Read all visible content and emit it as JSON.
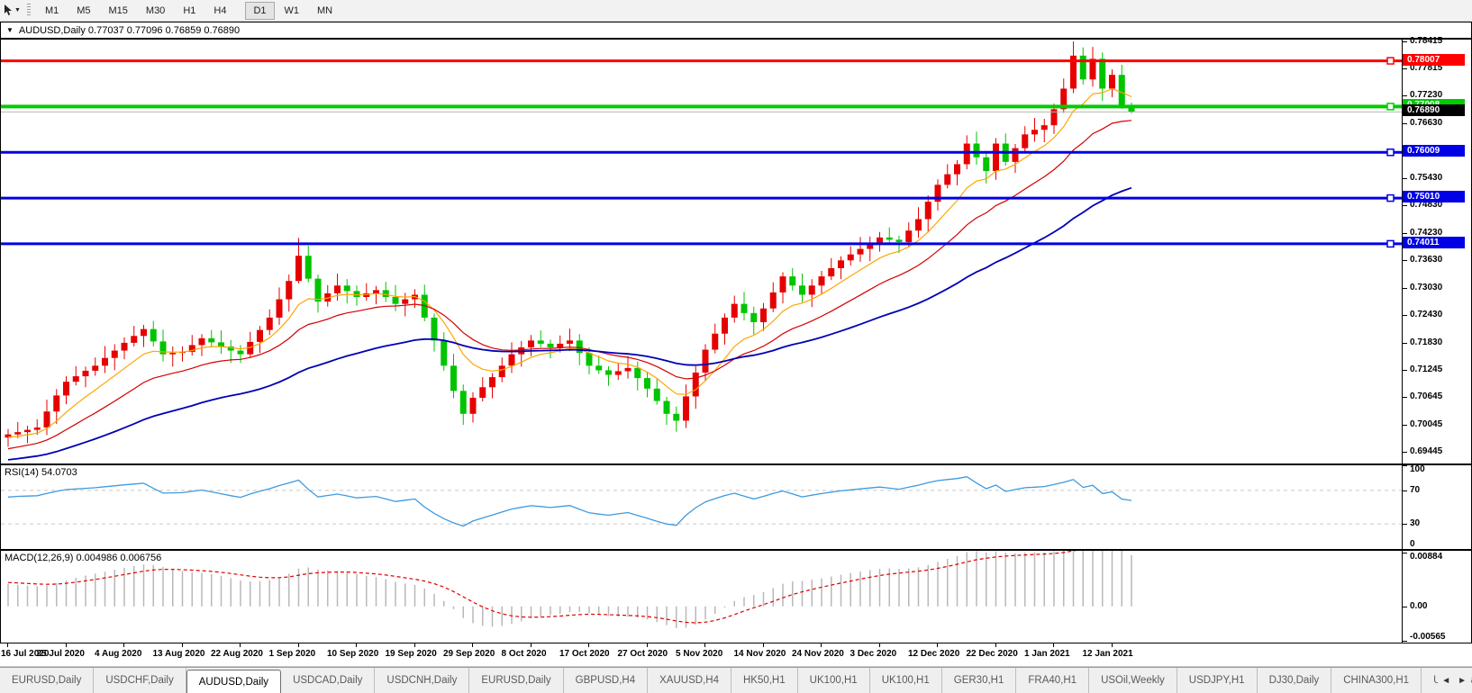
{
  "toolbar": {
    "cursor_tool": "cursor-pointer",
    "timeframes": [
      "M1",
      "M5",
      "M15",
      "M30",
      "H1",
      "H4",
      "D1",
      "W1",
      "MN"
    ],
    "active_timeframe": "D1",
    "group_break_before": "D1"
  },
  "title_bar": {
    "collapse_icon": "down-triangle",
    "symbol": "AUDUSD,Daily",
    "open": "0.77037",
    "high": "0.77096",
    "low": "0.76859",
    "close": "0.76890",
    "text": "AUDUSD,Daily  0.77037 0.77096 0.76859 0.76890"
  },
  "chart_data": {
    "type": "candlestick",
    "title": "AUDUSD,Daily",
    "color_convention": "red = up candle, green = down candle",
    "up_color": "#E60000",
    "down_color": "#00C400",
    "ylim": [
      0.69215,
      0.7847
    ],
    "y_ticks": [
      {
        "v": 0.78415,
        "label": "0.78415"
      },
      {
        "v": 0.77815,
        "label": "0.77815"
      },
      {
        "v": 0.7723,
        "label": "0.77230"
      },
      {
        "v": 0.7663,
        "label": "0.76630"
      },
      {
        "v": 0.7543,
        "label": "0.75430"
      },
      {
        "v": 0.7483,
        "label": "0.74830"
      },
      {
        "v": 0.7423,
        "label": "0.74230"
      },
      {
        "v": 0.7363,
        "label": "0.73630"
      },
      {
        "v": 0.7303,
        "label": "0.73030"
      },
      {
        "v": 0.7243,
        "label": "0.72430"
      },
      {
        "v": 0.7183,
        "label": "0.71830"
      },
      {
        "v": 0.71245,
        "label": "0.71245"
      },
      {
        "v": 0.70645,
        "label": "0.70645"
      },
      {
        "v": 0.70045,
        "label": "0.70045"
      },
      {
        "v": 0.69445,
        "label": "0.69445"
      }
    ],
    "hlines": [
      {
        "value": 0.78007,
        "label": "0.78007",
        "color": "#FF0000",
        "thickness": 3
      },
      {
        "value": 0.77008,
        "label": "0.77008",
        "color": "#00CC00",
        "thickness": 4
      },
      {
        "value": 0.76009,
        "label": "0.76009",
        "color": "#0000E6",
        "thickness": 3
      },
      {
        "value": 0.7501,
        "label": "0.75010",
        "color": "#0000E6",
        "thickness": 3
      },
      {
        "value": 0.74011,
        "label": "0.74011",
        "color": "#0000E6",
        "thickness": 3
      }
    ],
    "current_price_line": {
      "value": 0.7689,
      "label": "0.76890",
      "line_color": "#B4B4B4",
      "box_color": "#000000"
    },
    "moving_averages": [
      {
        "name": "ma-fast",
        "period": 8,
        "method": "ema",
        "color": "#FFA500",
        "width": 1.2,
        "seed_offset": 0.0008
      },
      {
        "name": "ma-medium",
        "period": 18,
        "method": "ema",
        "color": "#D40000",
        "width": 1.2,
        "seed_offset": 0.0035
      },
      {
        "name": "ma-slow",
        "period": 45,
        "method": "ema",
        "color": "#0000B4",
        "width": 1.8,
        "seed_offset": 0.0058
      }
    ],
    "x_labels": [
      "16 Jul 2020",
      "25 Jul 2020",
      "4 Aug 2020",
      "13 Aug 2020",
      "22 Aug 2020",
      "1 Sep 2020",
      "10 Sep 2020",
      "19 Sep 2020",
      "29 Sep 2020",
      "8 Oct 2020",
      "17 Oct 2020",
      "27 Oct 2020",
      "5 Nov 2020",
      "14 Nov 2020",
      "24 Nov 2020",
      "3 Dec 2020",
      "12 Dec 2020",
      "22 Dec 2020",
      "1 Jan 2021",
      "12 Jan 2021"
    ],
    "x_label_every_bars": 6,
    "ohlc": [
      [
        0.6978,
        0.6997,
        0.6958,
        0.6985
      ],
      [
        0.6985,
        0.7012,
        0.6977,
        0.699
      ],
      [
        0.699,
        0.7004,
        0.6966,
        0.6995
      ],
      [
        0.6995,
        0.7018,
        0.6984,
        0.7
      ],
      [
        0.7,
        0.7061,
        0.6984,
        0.7035
      ],
      [
        0.7035,
        0.7084,
        0.7008,
        0.707
      ],
      [
        0.707,
        0.7112,
        0.7051,
        0.71
      ],
      [
        0.71,
        0.7134,
        0.7092,
        0.7112
      ],
      [
        0.7112,
        0.7133,
        0.7088,
        0.7124
      ],
      [
        0.7124,
        0.7153,
        0.7113,
        0.7135
      ],
      [
        0.7135,
        0.7178,
        0.7119,
        0.7152
      ],
      [
        0.7152,
        0.7182,
        0.7125,
        0.7168
      ],
      [
        0.7168,
        0.7197,
        0.7149,
        0.7185
      ],
      [
        0.7185,
        0.7222,
        0.7177,
        0.72
      ],
      [
        0.72,
        0.7224,
        0.7176,
        0.7215
      ],
      [
        0.7215,
        0.7233,
        0.7177,
        0.7188
      ],
      [
        0.7188,
        0.7214,
        0.7144,
        0.716
      ],
      [
        0.716,
        0.7177,
        0.7133,
        0.7163
      ],
      [
        0.7163,
        0.7177,
        0.7144,
        0.7165
      ],
      [
        0.7165,
        0.7202,
        0.7157,
        0.718
      ],
      [
        0.718,
        0.7204,
        0.7156,
        0.7195
      ],
      [
        0.7195,
        0.7213,
        0.7175,
        0.7186
      ],
      [
        0.7186,
        0.7212,
        0.7161,
        0.7177
      ],
      [
        0.7177,
        0.7191,
        0.7141,
        0.7168
      ],
      [
        0.7168,
        0.718,
        0.7141,
        0.716
      ],
      [
        0.716,
        0.7209,
        0.7152,
        0.7187
      ],
      [
        0.7187,
        0.7222,
        0.7163,
        0.7213
      ],
      [
        0.7213,
        0.7258,
        0.7202,
        0.724
      ],
      [
        0.724,
        0.7306,
        0.7224,
        0.728
      ],
      [
        0.728,
        0.7334,
        0.7253,
        0.732
      ],
      [
        0.732,
        0.7414,
        0.7315,
        0.7375
      ],
      [
        0.7375,
        0.7397,
        0.7317,
        0.7325
      ],
      [
        0.7325,
        0.7334,
        0.7251,
        0.7275
      ],
      [
        0.7275,
        0.7311,
        0.7264,
        0.7293
      ],
      [
        0.7293,
        0.7336,
        0.7277,
        0.731
      ],
      [
        0.731,
        0.7324,
        0.7271,
        0.7298
      ],
      [
        0.7298,
        0.731,
        0.7266,
        0.7285
      ],
      [
        0.7285,
        0.7315,
        0.7277,
        0.7293
      ],
      [
        0.7293,
        0.7309,
        0.7269,
        0.73
      ],
      [
        0.73,
        0.7318,
        0.7274,
        0.7285
      ],
      [
        0.7285,
        0.7311,
        0.7254,
        0.727
      ],
      [
        0.727,
        0.7294,
        0.7243,
        0.728
      ],
      [
        0.728,
        0.7302,
        0.7261,
        0.729
      ],
      [
        0.729,
        0.7312,
        0.7232,
        0.724
      ],
      [
        0.724,
        0.7249,
        0.7166,
        0.719
      ],
      [
        0.719,
        0.7208,
        0.7124,
        0.7135
      ],
      [
        0.7135,
        0.7161,
        0.7064,
        0.708
      ],
      [
        0.708,
        0.7094,
        0.7006,
        0.703
      ],
      [
        0.703,
        0.7077,
        0.7011,
        0.7065
      ],
      [
        0.7065,
        0.711,
        0.7057,
        0.7088
      ],
      [
        0.7088,
        0.7119,
        0.7064,
        0.711
      ],
      [
        0.711,
        0.7153,
        0.7099,
        0.7135
      ],
      [
        0.7135,
        0.7186,
        0.7119,
        0.716
      ],
      [
        0.716,
        0.7189,
        0.7133,
        0.7175
      ],
      [
        0.7175,
        0.7202,
        0.7156,
        0.719
      ],
      [
        0.719,
        0.7212,
        0.7175,
        0.7183
      ],
      [
        0.7183,
        0.7192,
        0.7151,
        0.7175
      ],
      [
        0.7175,
        0.7201,
        0.7164,
        0.7183
      ],
      [
        0.7183,
        0.7216,
        0.7167,
        0.719
      ],
      [
        0.719,
        0.7204,
        0.7136,
        0.7163
      ],
      [
        0.7163,
        0.7175,
        0.7116,
        0.7135
      ],
      [
        0.7135,
        0.7157,
        0.7117,
        0.7125
      ],
      [
        0.7125,
        0.7134,
        0.7091,
        0.7115
      ],
      [
        0.7115,
        0.7141,
        0.7104,
        0.7123
      ],
      [
        0.7123,
        0.7156,
        0.7107,
        0.713
      ],
      [
        0.713,
        0.7144,
        0.7081,
        0.7108
      ],
      [
        0.7108,
        0.712,
        0.7066,
        0.7085
      ],
      [
        0.7085,
        0.7107,
        0.705,
        0.7058
      ],
      [
        0.7058,
        0.7067,
        0.7006,
        0.703
      ],
      [
        0.703,
        0.7046,
        0.6991,
        0.7015
      ],
      [
        0.7015,
        0.7094,
        0.6999,
        0.7068
      ],
      [
        0.7068,
        0.7134,
        0.7041,
        0.712
      ],
      [
        0.712,
        0.7182,
        0.7101,
        0.717
      ],
      [
        0.717,
        0.7227,
        0.7162,
        0.7205
      ],
      [
        0.7205,
        0.7249,
        0.7181,
        0.724
      ],
      [
        0.724,
        0.7288,
        0.7229,
        0.727
      ],
      [
        0.727,
        0.7296,
        0.7234,
        0.725
      ],
      [
        0.725,
        0.7264,
        0.7203,
        0.723
      ],
      [
        0.723,
        0.7272,
        0.7211,
        0.726
      ],
      [
        0.726,
        0.7317,
        0.7252,
        0.7295
      ],
      [
        0.7295,
        0.7339,
        0.7271,
        0.733
      ],
      [
        0.733,
        0.7348,
        0.7299,
        0.731
      ],
      [
        0.731,
        0.7336,
        0.7274,
        0.729
      ],
      [
        0.729,
        0.7324,
        0.7263,
        0.731
      ],
      [
        0.731,
        0.7342,
        0.7291,
        0.733
      ],
      [
        0.733,
        0.737,
        0.7322,
        0.7348
      ],
      [
        0.7348,
        0.7374,
        0.7324,
        0.7365
      ],
      [
        0.7365,
        0.7396,
        0.7354,
        0.7378
      ],
      [
        0.7378,
        0.7416,
        0.7362,
        0.739
      ],
      [
        0.739,
        0.7417,
        0.7363,
        0.7403
      ],
      [
        0.7403,
        0.7427,
        0.7384,
        0.7415
      ],
      [
        0.7415,
        0.7437,
        0.7402,
        0.741
      ],
      [
        0.741,
        0.7419,
        0.7381,
        0.7405
      ],
      [
        0.7405,
        0.7448,
        0.7394,
        0.743
      ],
      [
        0.743,
        0.7481,
        0.7414,
        0.7455
      ],
      [
        0.7455,
        0.7507,
        0.7428,
        0.7493
      ],
      [
        0.7493,
        0.7542,
        0.7474,
        0.753
      ],
      [
        0.753,
        0.7575,
        0.7522,
        0.7553
      ],
      [
        0.7553,
        0.7584,
        0.7529,
        0.7575
      ],
      [
        0.7575,
        0.7638,
        0.7564,
        0.762
      ],
      [
        0.762,
        0.7646,
        0.7574,
        0.759
      ],
      [
        0.759,
        0.7604,
        0.7533,
        0.756
      ],
      [
        0.756,
        0.7632,
        0.7541,
        0.762
      ],
      [
        0.762,
        0.7642,
        0.7572,
        0.758
      ],
      [
        0.758,
        0.7619,
        0.7556,
        0.761
      ],
      [
        0.761,
        0.7658,
        0.7599,
        0.764
      ],
      [
        0.764,
        0.7676,
        0.7624,
        0.765
      ],
      [
        0.765,
        0.7674,
        0.7623,
        0.766
      ],
      [
        0.766,
        0.7707,
        0.7641,
        0.7695
      ],
      [
        0.7695,
        0.7762,
        0.7687,
        0.774
      ],
      [
        0.774,
        0.7843,
        0.773,
        0.7812
      ],
      [
        0.7812,
        0.783,
        0.7749,
        0.776
      ],
      [
        0.776,
        0.7831,
        0.7744,
        0.7805
      ],
      [
        0.7805,
        0.7819,
        0.7713,
        0.774
      ],
      [
        0.774,
        0.7782,
        0.7721,
        0.777
      ],
      [
        0.777,
        0.7792,
        0.7696,
        0.7704
      ],
      [
        0.77037,
        0.77096,
        0.76859,
        0.7689
      ]
    ],
    "indicators": [
      {
        "name": "RSI",
        "label": "RSI(14) 54.0703",
        "period": 14,
        "last_value": 54.0703,
        "levels": [
          70,
          30
        ],
        "ylim": [
          0,
          100
        ],
        "y_ticks": [
          {
            "v": 100,
            "label": "100"
          },
          {
            "v": 70,
            "label": "70"
          },
          {
            "v": 30,
            "label": "30"
          },
          {
            "v": 0,
            "label": "0"
          }
        ],
        "line_color": "#3E9ADE",
        "level_color": "#C8C8C8"
      },
      {
        "name": "MACD",
        "label": "MACD(12,26,9) 0.004986 0.006756",
        "fast": 12,
        "slow": 26,
        "signal": 9,
        "last_macd": 0.004986,
        "last_signal": 0.006756,
        "ylim": [
          -0.006,
          0.0092
        ],
        "y_ticks": [
          {
            "v": 0.00884,
            "label": "0.00884"
          },
          {
            "v": 0,
            "label": "0.00"
          },
          {
            "v": -0.00565,
            "label": "-0.00565"
          }
        ],
        "hist_color": "#B8B8B8",
        "signal_color": "#E00000"
      }
    ]
  },
  "tabs": {
    "active_index": 2,
    "items": [
      {
        "label": "EURUSD,Daily"
      },
      {
        "label": "USDCHF,Daily"
      },
      {
        "label": "AUDUSD,Daily"
      },
      {
        "label": "USDCAD,Daily"
      },
      {
        "label": "USDCNH,Daily"
      },
      {
        "label": "EURUSD,Daily"
      },
      {
        "label": "GBPUSD,H4"
      },
      {
        "label": "XAUUSD,H4"
      },
      {
        "label": "HK50,H1"
      },
      {
        "label": "UK100,H1"
      },
      {
        "label": "UK100,H1"
      },
      {
        "label": "GER30,H1"
      },
      {
        "label": "FRA40,H1"
      },
      {
        "label": "USOil,Weekly"
      },
      {
        "label": "USDJPY,H1"
      },
      {
        "label": "DJ30,Daily"
      },
      {
        "label": "CHINA300,H1"
      },
      {
        "label": "USOil,Daily"
      }
    ],
    "scroll_left": "◄",
    "scroll_right": "►"
  }
}
